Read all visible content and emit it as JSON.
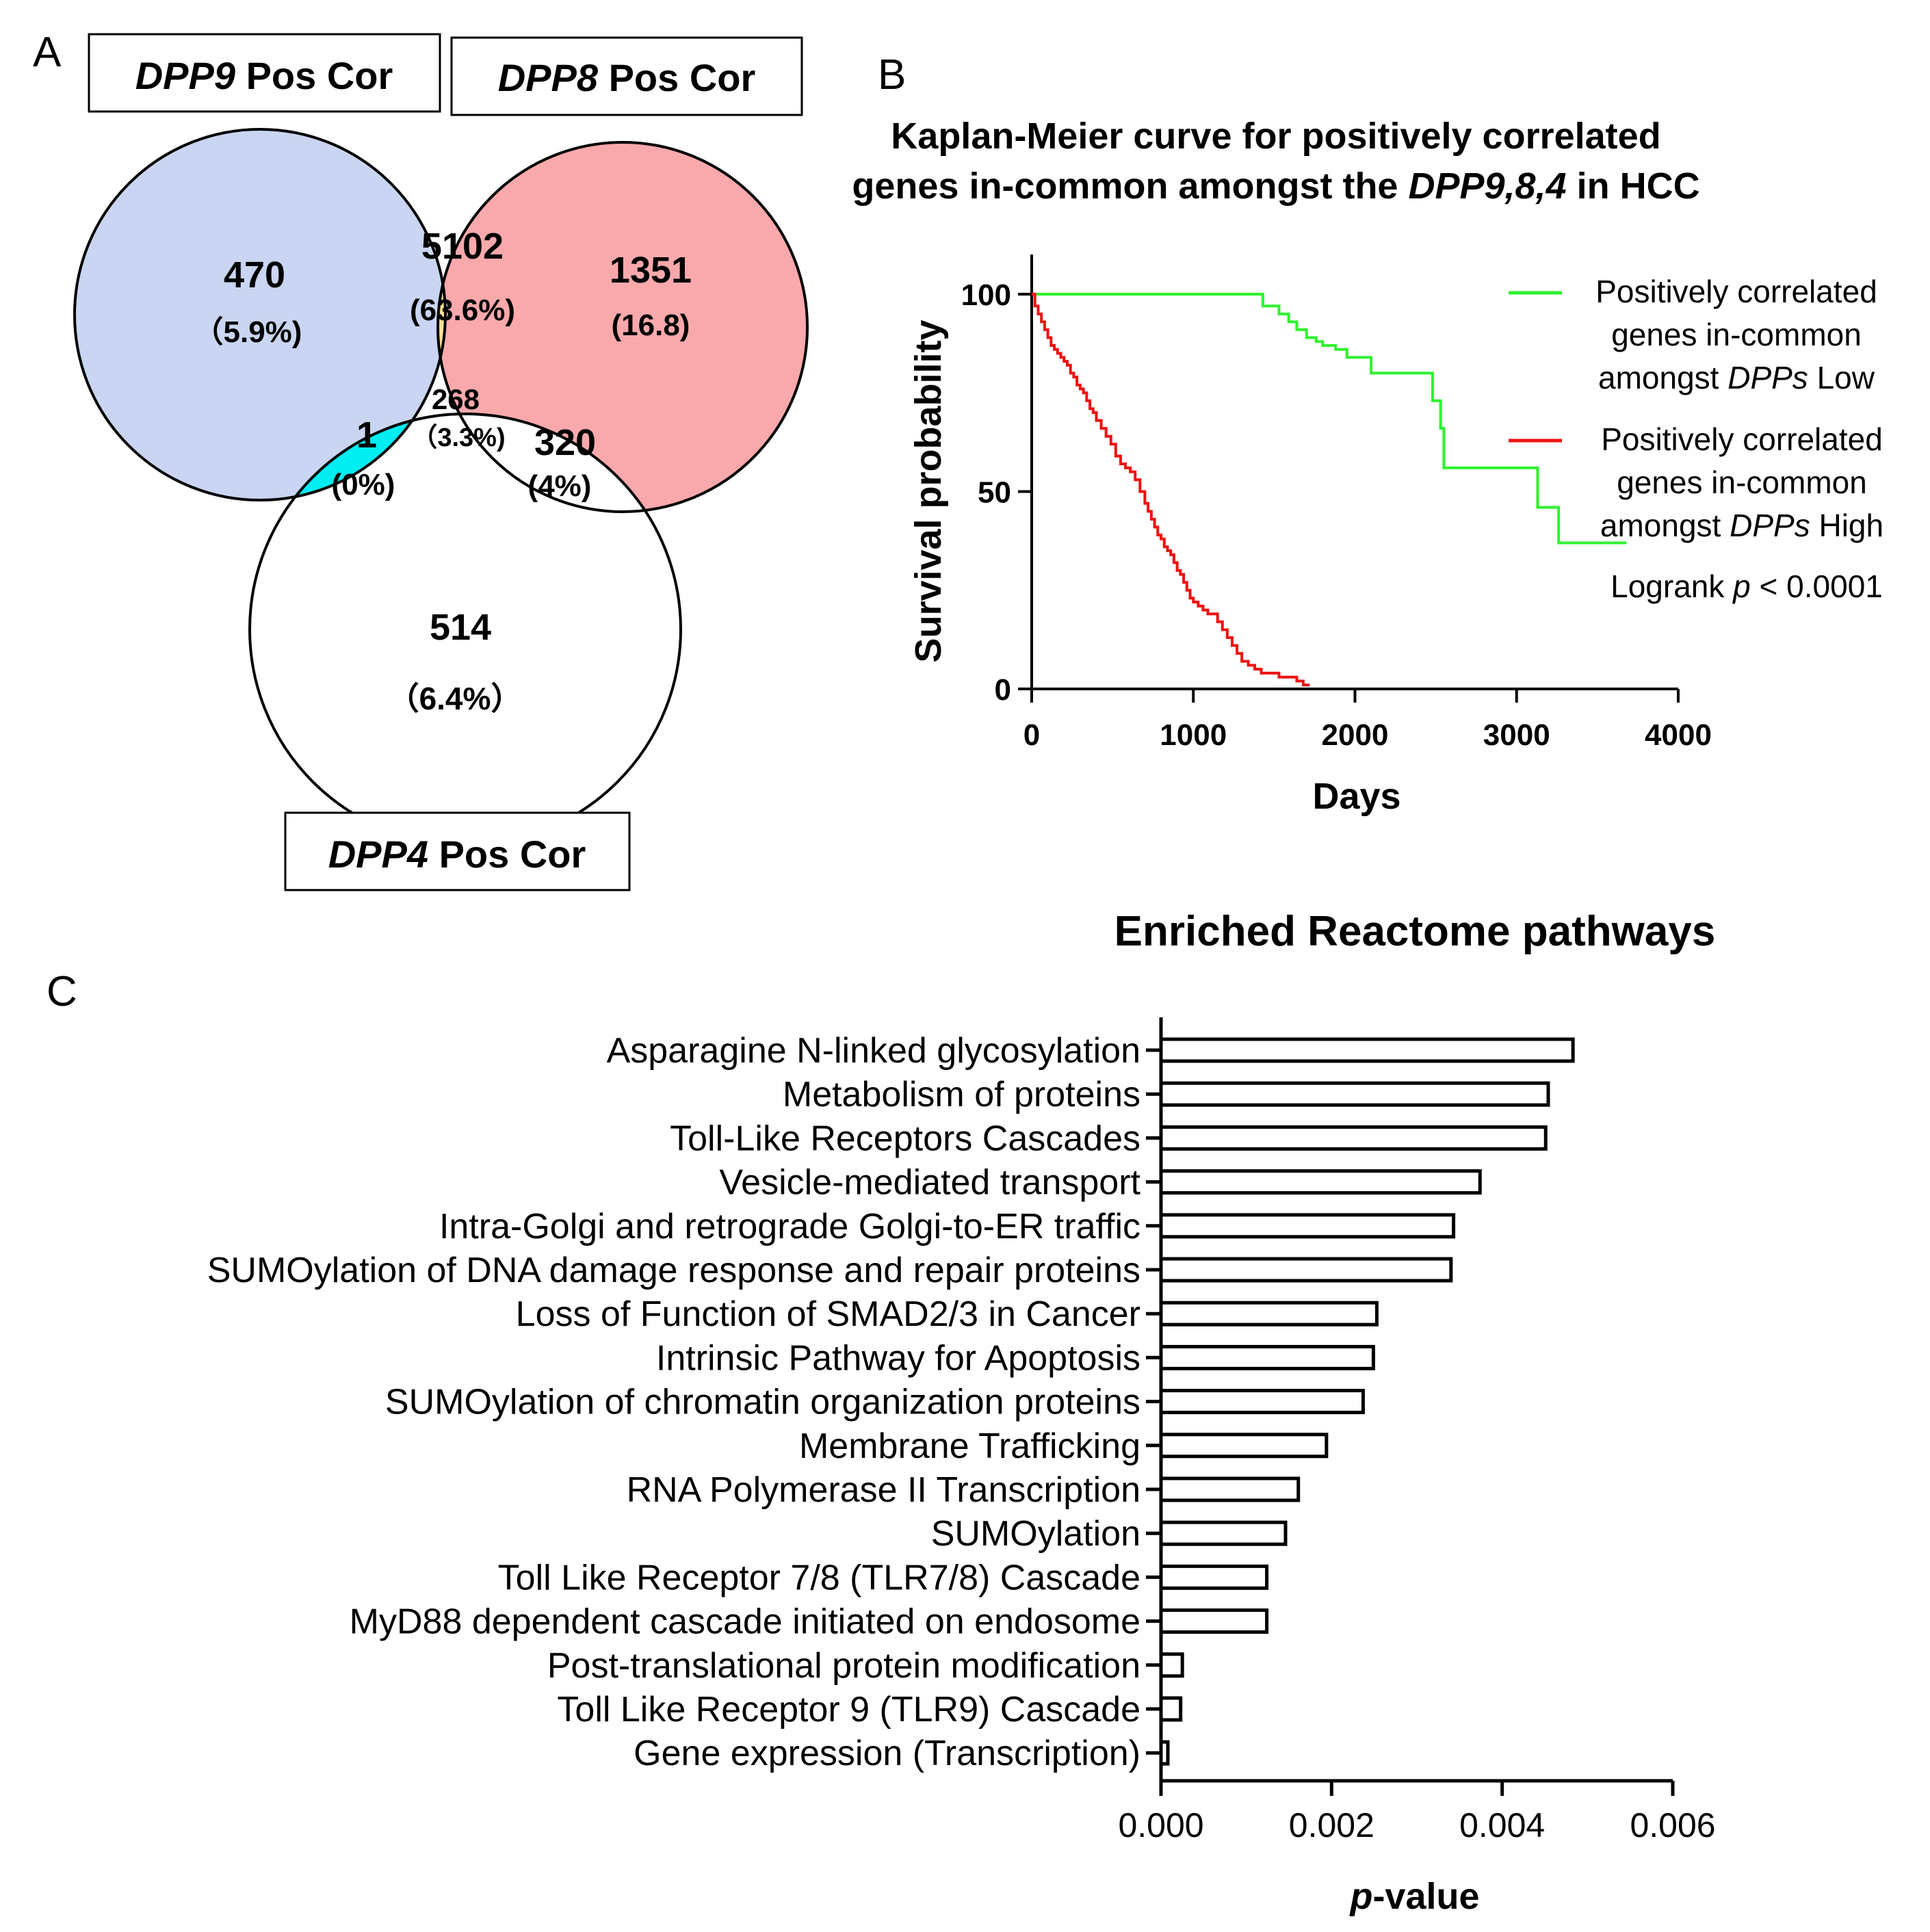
{
  "panel_labels": {
    "a": "A",
    "b": "B",
    "c": "C"
  },
  "colors": {
    "dpp9": "#c9d5f2",
    "dpp8": "#f9a9ab",
    "dpp98": "#fde093",
    "dpp94": "#00edf2",
    "center": "#fdf700",
    "dpp4": "#ffffff",
    "low": "#2ef22e",
    "high": "#ef1111",
    "stroke": "#000000"
  },
  "venn": {
    "sets": [
      {
        "name_italic": "DPP9",
        "name_rest": " Pos Cor"
      },
      {
        "name_italic": "DPP8",
        "name_rest": " Pos Cor"
      },
      {
        "name_italic": "DPP4",
        "name_rest": " Pos Cor"
      }
    ],
    "regions": [
      {
        "id": "dpp9-only",
        "count": "470",
        "percent": "（5.9%)"
      },
      {
        "id": "dpp9-dpp8",
        "count": "5102",
        "percent": "(63.6%)"
      },
      {
        "id": "dpp8-only",
        "count": "1351",
        "percent": "(16.8)"
      },
      {
        "id": "all-three",
        "count": "268",
        "percent": "（3.3%)"
      },
      {
        "id": "dpp9-dpp4",
        "count": "1",
        "percent": "(0%)"
      },
      {
        "id": "dpp8-dpp4",
        "count": "320",
        "percent": "(4%)"
      },
      {
        "id": "dpp4-only",
        "count": "514",
        "percent": "（6.4%）"
      }
    ]
  },
  "chart_data": [
    {
      "type": "line",
      "subtype": "kaplan-meier",
      "title_line1": "Kaplan-Meier curve for positively correlated",
      "title_line2_pre": "genes in-common amongst the ",
      "title_line2_italic": "DPP9,8,4",
      "title_line2_post": " in HCC",
      "xlabel": "Days",
      "ylabel": "Survival probability",
      "xlim": [
        0,
        4000
      ],
      "ylim": [
        0,
        100
      ],
      "xticks": [
        0,
        1000,
        2000,
        3000,
        4000
      ],
      "yticks": [
        0,
        50,
        100
      ],
      "annotation_pre": "Logrank ",
      "annotation_italic": "p",
      "annotation_post": " < 0.0001",
      "legend_position": "right",
      "series": [
        {
          "name": "Positively correlated genes in-common amongst DPPs Low",
          "legend_line1": "Positively correlated",
          "legend_line2": "genes in-common",
          "legend_line3_pre": "amongst ",
          "legend_line3_italic": "DPPs",
          "legend_line3_post": " Low",
          "color_key": "low",
          "x": [
            0,
            400,
            1380,
            1430,
            1530,
            1590,
            1640,
            1700,
            1760,
            1800,
            1880,
            1950,
            2100,
            2440,
            2480,
            2530,
            2550,
            3130,
            3260,
            3680
          ],
          "y": [
            100,
            100,
            100,
            97,
            95,
            93,
            91,
            89,
            88,
            87,
            86,
            84,
            80,
            80,
            73,
            66,
            56,
            46,
            37,
            37
          ]
        },
        {
          "name": "Positively correlated genes in-common amongst DPPs High",
          "legend_line1": "Positively correlated",
          "legend_line2": "genes in-common",
          "legend_line3_pre": "amongst ",
          "legend_line3_italic": "DPPs",
          "legend_line3_post": " High",
          "color_key": "high",
          "x": [
            0,
            20,
            40,
            60,
            80,
            100,
            120,
            140,
            160,
            180,
            200,
            220,
            240,
            260,
            280,
            300,
            320,
            340,
            360,
            380,
            400,
            430,
            460,
            490,
            520,
            550,
            580,
            610,
            640,
            670,
            700,
            720,
            740,
            760,
            780,
            800,
            820,
            840,
            860,
            880,
            900,
            920,
            940,
            960,
            980,
            1000,
            1030,
            1060,
            1090,
            1120,
            1150,
            1180,
            1210,
            1240,
            1270,
            1300,
            1340,
            1380,
            1420,
            1480,
            1530,
            1580,
            1640,
            1680,
            1720
          ],
          "y": [
            100,
            97,
            95,
            93,
            91,
            89,
            87,
            86,
            85,
            84,
            83,
            82,
            80,
            79,
            77,
            76,
            75,
            73,
            71,
            70,
            68,
            66,
            64,
            62,
            59,
            57,
            56,
            55,
            53,
            50,
            47,
            45,
            43,
            41,
            39,
            38,
            36,
            35,
            34,
            32,
            30,
            29,
            27,
            25,
            23,
            22,
            21,
            20,
            19,
            19,
            17,
            15,
            13,
            11,
            9,
            7,
            6,
            5,
            4,
            4,
            3,
            3,
            2,
            1,
            1
          ]
        }
      ]
    },
    {
      "type": "bar",
      "orientation": "horizontal",
      "title": "Enriched Reactome pathways",
      "xlabel_italic": "p",
      "xlabel_rest": "-value",
      "xlim": [
        0,
        0.006
      ],
      "xticks": [
        "0.000",
        "0.002",
        "0.004",
        "0.006"
      ],
      "categories": [
        "Asparagine N-linked glycosylation",
        "Metabolism of proteins",
        "Toll-Like Receptors Cascades",
        "Vesicle-mediated transport",
        "Intra-Golgi and retrograde Golgi-to-ER traffic",
        "SUMOylation of DNA damage response and repair proteins",
        "Loss of Function of SMAD2/3 in Cancer",
        "Intrinsic Pathway for Apoptosis",
        "SUMOylation of chromatin organization proteins",
        "Membrane Trafficking",
        "RNA Polymerase II Transcription",
        "SUMOylation",
        "Toll Like Receptor 7/8 (TLR7/8) Cascade",
        "MyD88 dependent cascade initiated on endosome",
        "Post-translational protein modification",
        "Toll Like Receptor 9 (TLR9) Cascade",
        "Gene expression (Transcription)"
      ],
      "values": [
        0.00483,
        0.00454,
        0.00451,
        0.00374,
        0.00343,
        0.0034,
        0.00253,
        0.00249,
        0.00237,
        0.00194,
        0.00161,
        0.00146,
        0.00124,
        0.00124,
        0.00025,
        0.00023,
        8e-05
      ]
    }
  ]
}
